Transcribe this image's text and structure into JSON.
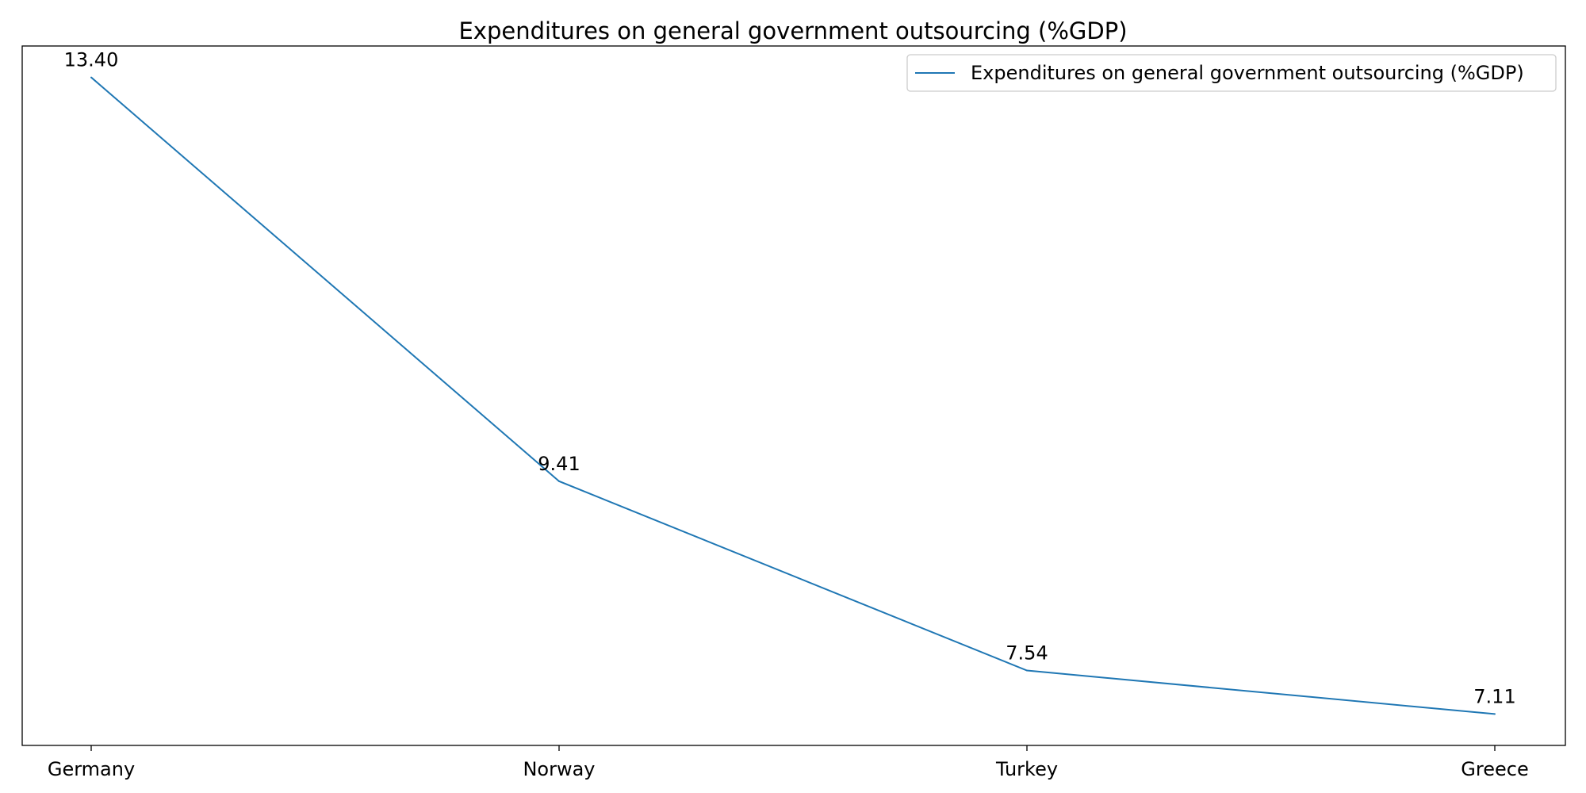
{
  "chart_data": {
    "type": "line",
    "title": "Expenditures on general government outsourcing (%GDP)",
    "xlabel": "",
    "ylabel": "",
    "categories": [
      "Germany",
      "Norway",
      "Turkey",
      "Greece"
    ],
    "series": [
      {
        "name": "Expenditures on general government outsourcing (%GDP)",
        "values": [
          13.4,
          9.41,
          7.54,
          7.11
        ],
        "labels": [
          "13.40",
          "9.41",
          "7.54",
          "7.11"
        ],
        "color": "#1f77b4"
      }
    ],
    "ylim": [
      6.8,
      13.71
    ],
    "grid": false,
    "y_ticks_visible": false,
    "legend_position": "top-right"
  }
}
